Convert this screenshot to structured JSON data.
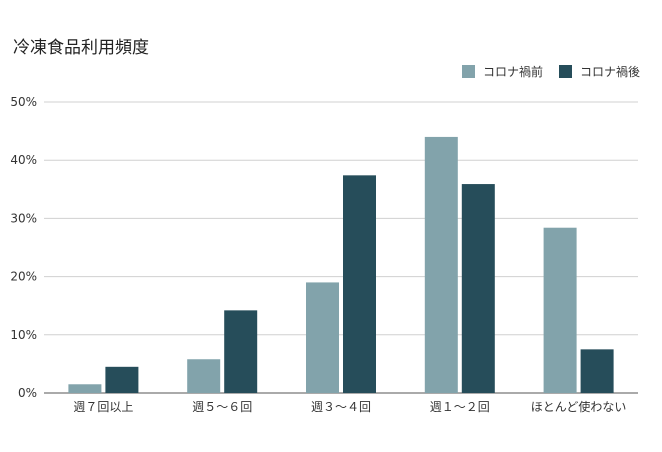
{
  "chart_data": {
    "type": "bar",
    "title": "冷凍食品利用頻度",
    "categories": [
      "週７回以上",
      "週５〜６回",
      "週３〜４回",
      "週１〜２回",
      "ほとんど使わない"
    ],
    "series": [
      {
        "name": "コロナ禍前",
        "values": [
          1.5,
          5.8,
          19.0,
          44.0,
          28.4
        ],
        "color": "#82a3ab"
      },
      {
        "name": "コロナ禍後",
        "values": [
          4.5,
          14.2,
          37.4,
          35.9,
          7.5
        ],
        "color": "#264d5a"
      }
    ],
    "yticks": [
      "0%",
      "10%",
      "20%",
      "30%",
      "40%",
      "50%"
    ],
    "ylim": [
      0,
      50
    ],
    "grid": true,
    "legend_position": "top-right"
  }
}
